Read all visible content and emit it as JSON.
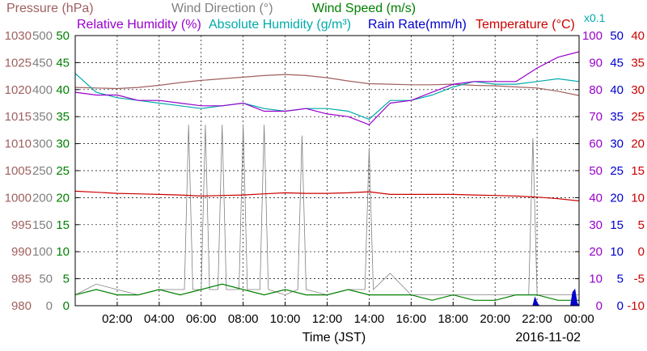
{
  "chart_data": {
    "type": "line",
    "legend": {
      "row1": [
        {
          "label": "Pressure (hPa)",
          "color": "#a0605f"
        },
        {
          "label": "Wind Direction (°)",
          "color": "#808080"
        },
        {
          "label": "Wind Speed (m/s)",
          "color": "#008000"
        }
      ],
      "row2": [
        {
          "label": "Relative Humidity (%)",
          "color": "#9900cc"
        },
        {
          "label": "Absolute Humidity (g/m³)",
          "color": "#00aaaa"
        },
        {
          "label": "Rain Rate(mm/h)",
          "color": "#0000cc"
        },
        {
          "label": "Temperature (°C)",
          "color": "#cc0000"
        }
      ],
      "multiplier_label": "x0.1"
    },
    "xlabel": "Time (JST)",
    "date_label": "2016-11-02",
    "x_range_hours": [
      0,
      24
    ],
    "x_ticks": [
      "02:00",
      "04:00",
      "06:00",
      "08:00",
      "10:00",
      "12:00",
      "14:00",
      "16:00",
      "18:00",
      "20:00",
      "22:00",
      "00:00"
    ],
    "grid": true,
    "axes": {
      "pressure": {
        "color": "#a0605f",
        "range": [
          980,
          1030
        ],
        "ticks": [
          "1030",
          "1025",
          "1020",
          "1015",
          "1010",
          "1005",
          "1000",
          "995",
          "990",
          "985",
          "980"
        ]
      },
      "wind_direction": {
        "color": "#808080",
        "range": [
          0,
          500
        ],
        "ticks": [
          "500",
          "450",
          "400",
          "350",
          "300",
          "250",
          "200",
          "150",
          "100",
          "50",
          "0"
        ]
      },
      "wind_speed": {
        "color": "#008000",
        "range": [
          0,
          50
        ],
        "ticks": [
          "50",
          "45",
          "40",
          "35",
          "30",
          "25",
          "20",
          "15",
          "10",
          "5",
          "0"
        ]
      },
      "humidity": {
        "color": "#9900cc",
        "range": [
          0,
          100
        ],
        "ticks": [
          "100",
          "90",
          "80",
          "70",
          "60",
          "50",
          "40",
          "30",
          "20",
          "10",
          "0"
        ]
      },
      "rain_rate": {
        "color": "#0000cc",
        "range": [
          0,
          50
        ],
        "ticks": [
          "50",
          "45",
          "40",
          "35",
          "30",
          "25",
          "20",
          "15",
          "10",
          "5",
          "0"
        ]
      },
      "temperature": {
        "color": "#cc0000",
        "range": [
          -10,
          40
        ],
        "ticks": [
          "40",
          "35",
          "30",
          "25",
          "20",
          "15",
          "10",
          "5",
          "0",
          "-5",
          "-10"
        ]
      }
    },
    "series": [
      {
        "name": "Pressure (hPa)",
        "axis": "pressure",
        "color": "#a0605f",
        "x": [
          0,
          1,
          2,
          3,
          4,
          5,
          6,
          7,
          8,
          9,
          10,
          11,
          12,
          13,
          14,
          15,
          16,
          17,
          18,
          19,
          20,
          21,
          22,
          23,
          24
        ],
        "y": [
          1020.4,
          1020.3,
          1020.2,
          1020.4,
          1020.8,
          1021.3,
          1021.7,
          1022.0,
          1022.3,
          1022.6,
          1022.8,
          1022.6,
          1022.2,
          1021.6,
          1021.1,
          1021.0,
          1020.9,
          1020.9,
          1021.0,
          1020.8,
          1020.7,
          1020.5,
          1020.3,
          1019.7,
          1018.9
        ]
      },
      {
        "name": "Relative Humidity (%)",
        "axis": "humidity",
        "color": "#9900cc",
        "x": [
          0,
          1,
          2,
          3,
          4,
          5,
          6,
          7,
          8,
          9,
          10,
          11,
          12,
          13,
          14,
          15,
          16,
          17,
          18,
          19,
          20,
          21,
          22,
          23,
          24
        ],
        "y": [
          79,
          78,
          78,
          76,
          76,
          75,
          74,
          74,
          75,
          72,
          72,
          73,
          71,
          70,
          67,
          75,
          76,
          79,
          82,
          83,
          83,
          83,
          88,
          92,
          94
        ]
      },
      {
        "name": "Absolute Humidity (g/m³)",
        "axis": "humidity",
        "color": "#00aaaa",
        "x": [
          0,
          1,
          2,
          3,
          4,
          5,
          6,
          7,
          8,
          9,
          10,
          11,
          12,
          13,
          14,
          15,
          16,
          17,
          18,
          19,
          20,
          21,
          22,
          23,
          24
        ],
        "y": [
          86,
          79,
          77,
          76,
          75,
          74,
          73,
          74,
          75,
          73,
          72,
          73,
          73,
          72,
          69,
          76,
          76,
          78,
          81,
          83,
          82,
          82,
          83,
          84,
          83
        ]
      },
      {
        "name": "Temperature (°C)",
        "axis": "temperature",
        "color": "#cc0000",
        "x": [
          0,
          1,
          2,
          3,
          4,
          5,
          6,
          7,
          8,
          9,
          10,
          11,
          12,
          13,
          14,
          15,
          16,
          17,
          18,
          19,
          20,
          21,
          22,
          23,
          24
        ],
        "y": [
          11.2,
          11.0,
          10.8,
          10.7,
          10.6,
          10.5,
          10.3,
          10.4,
          10.5,
          10.7,
          10.9,
          10.8,
          10.8,
          10.9,
          11.1,
          10.6,
          10.6,
          10.6,
          10.6,
          10.5,
          10.4,
          10.3,
          10.1,
          9.8,
          9.4
        ]
      },
      {
        "name": "Wind Direction (°)",
        "axis": "wind_direction",
        "color": "#808080",
        "x": [
          0,
          1,
          2,
          3,
          4,
          5.2,
          5.4,
          5.6,
          6,
          6.2,
          6.4,
          6.8,
          7.0,
          7.2,
          7.8,
          8.0,
          8.2,
          8.8,
          9.0,
          9.2,
          10,
          10.6,
          10.8,
          11,
          12,
          13,
          13.8,
          14.0,
          14.2,
          15,
          16,
          17,
          18,
          19,
          20,
          21,
          21.6,
          21.8,
          22,
          23,
          24
        ],
        "y": [
          20,
          40,
          30,
          20,
          30,
          30,
          335,
          30,
          30,
          335,
          30,
          30,
          335,
          30,
          30,
          335,
          30,
          30,
          335,
          30,
          20,
          30,
          315,
          30,
          20,
          30,
          30,
          292,
          30,
          60,
          20,
          20,
          20,
          20,
          20,
          20,
          20,
          310,
          20,
          20,
          20
        ]
      },
      {
        "name": "Wind Speed (m/s)",
        "axis": "wind_speed",
        "color": "#008000",
        "x": [
          0,
          1,
          2,
          3,
          4,
          5,
          6,
          7,
          8,
          9,
          10,
          11,
          12,
          13,
          14,
          15,
          16,
          17,
          18,
          19,
          20,
          21,
          22,
          23,
          24
        ],
        "y": [
          2,
          3,
          2,
          2,
          3,
          2,
          3,
          4,
          3,
          2,
          3,
          2,
          2,
          3,
          2,
          2,
          2,
          1,
          2,
          1,
          1,
          2,
          2,
          1,
          1
        ]
      },
      {
        "name": "Rain Rate(mm/h)",
        "axis": "rain_rate",
        "color": "#0000cc",
        "x": [
          0,
          21.8,
          21.9,
          22.0,
          22.1,
          23.6,
          23.7,
          23.8,
          23.9,
          24
        ],
        "y": [
          0,
          0,
          1.5,
          0.5,
          0,
          0,
          2.5,
          3,
          0.5,
          0
        ]
      }
    ]
  }
}
